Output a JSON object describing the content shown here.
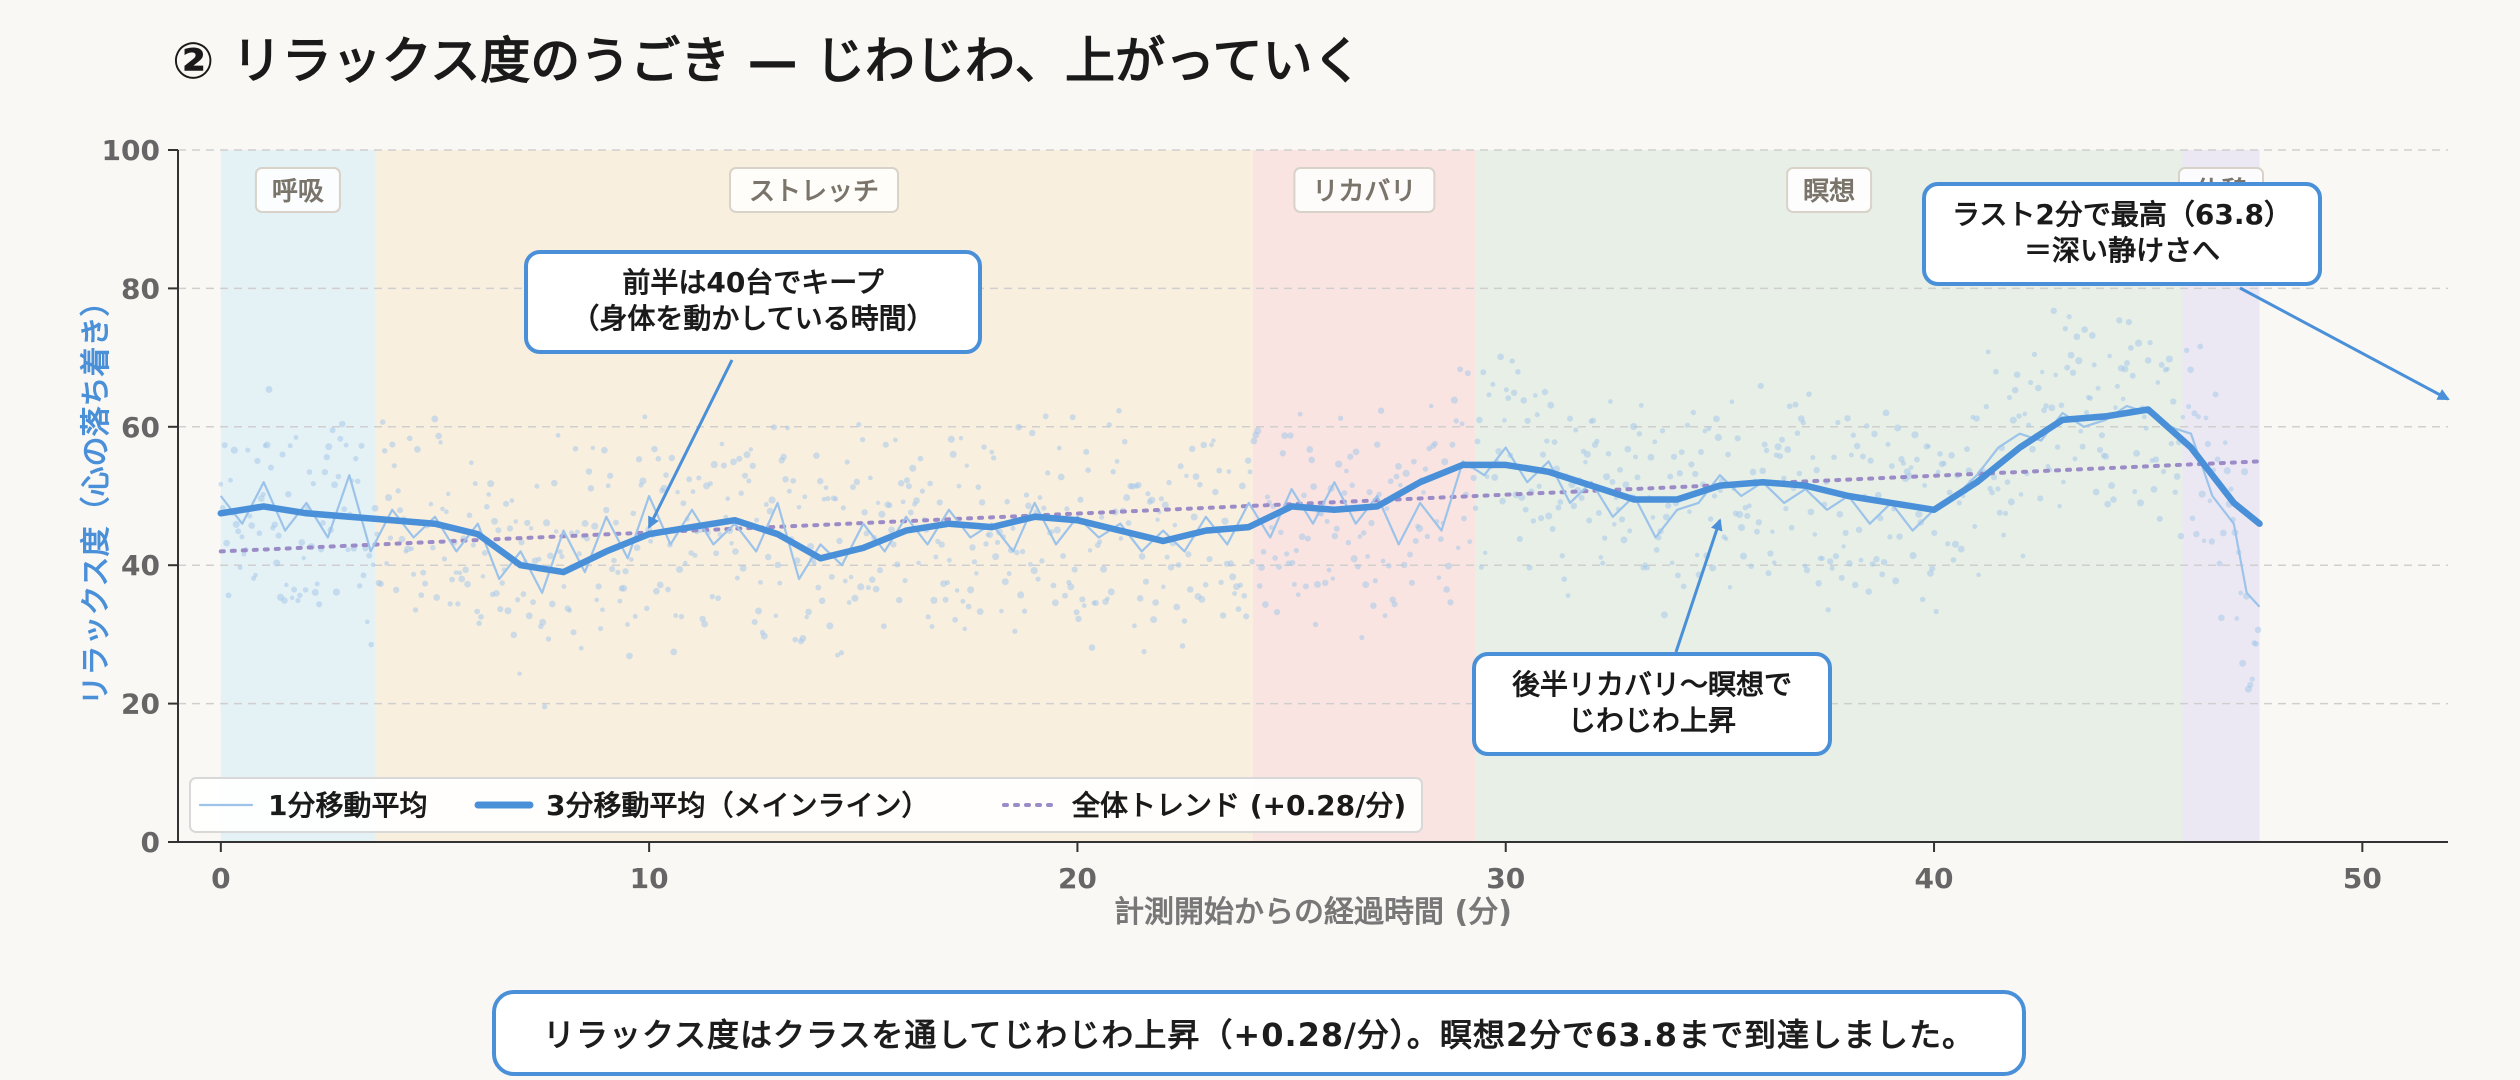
{
  "title": "② リラックス度のうごき — じわじわ、上がっていく",
  "footer_note": "リラックス度はクラスを通してじわじわ上昇（+0.28/分）。瞑想2分で63.8まで到達しました。",
  "colors": {
    "main": "#4a90d9",
    "thin": "#9cc3ea",
    "dots": "#a8c8ea",
    "trend": "#9b8cc8",
    "phase_breath": "#e4f1f5",
    "phase_stretch": "#f8efdf",
    "phase_recovery": "#f9e4e1",
    "phase_meditation": "#e7efe6",
    "phase_rest": "#ece8f3"
  },
  "chart_data": {
    "type": "line",
    "xlabel": "計測開始からの経過時間 (分)",
    "ylabel": "リラックス度（心の落ち着き）",
    "xlim": [
      -1,
      52
    ],
    "ylim": [
      0,
      100
    ],
    "xticks": [
      0,
      10,
      20,
      30,
      40,
      50
    ],
    "yticks": [
      0,
      20,
      40,
      60,
      80,
      100
    ],
    "grid": "horizontal-dashed",
    "legend_position": "bottom-left",
    "phases": [
      {
        "label": "呼吸",
        "start": 0,
        "end": 3.6
      },
      {
        "label": "ストレッチ",
        "start": 3.6,
        "end": 24.1
      },
      {
        "label": "リカバリ",
        "start": 24.1,
        "end": 29.3
      },
      {
        "label": "瞑想",
        "start": 29.3,
        "end": 45.8
      },
      {
        "label": "休憩",
        "start": 45.8,
        "end": 47.6
      }
    ],
    "series": [
      {
        "name": "3分移動平均（メインライン）",
        "x": [
          0,
          1,
          2,
          3,
          4,
          5,
          6,
          7,
          8,
          9,
          10,
          11,
          12,
          13,
          14,
          15,
          16,
          17,
          18,
          19,
          20,
          21,
          22,
          23,
          24,
          25,
          26,
          27,
          28,
          29,
          30,
          31,
          32,
          33,
          34,
          35,
          36,
          37,
          38,
          39,
          40,
          41,
          42,
          43,
          44,
          45,
          46,
          47,
          47.6
        ],
        "y": [
          47.5,
          48.5,
          47.5,
          47,
          46.5,
          46,
          44.5,
          40,
          39,
          42,
          44.5,
          45.5,
          46.5,
          44.5,
          41,
          42.5,
          45,
          46,
          45.5,
          47,
          46.5,
          45,
          43.5,
          45,
          45.5,
          48.5,
          48,
          48.5,
          52,
          54.5,
          54.5,
          53.5,
          51.5,
          49.5,
          49.5,
          51.5,
          52,
          51.5,
          50,
          49,
          48,
          52,
          57,
          61,
          61.5,
          62.5,
          57,
          49,
          46
        ]
      },
      {
        "name": "1分移動平均",
        "x": [
          0,
          0.5,
          1,
          1.5,
          2,
          2.5,
          3,
          3.5,
          4,
          4.5,
          5,
          5.5,
          6,
          6.5,
          7,
          7.5,
          8,
          8.5,
          9,
          9.5,
          10,
          10.5,
          11,
          11.5,
          12,
          12.5,
          13,
          13.5,
          14,
          14.5,
          15,
          15.5,
          16,
          16.5,
          17,
          17.5,
          18,
          18.5,
          19,
          19.5,
          20,
          20.5,
          21,
          21.5,
          22,
          22.5,
          23,
          23.5,
          24,
          24.5,
          25,
          25.5,
          26,
          26.5,
          27,
          27.5,
          28,
          28.5,
          29,
          29.5,
          30,
          30.5,
          31,
          31.5,
          32,
          32.5,
          33,
          33.5,
          34,
          34.5,
          35,
          35.5,
          36,
          36.5,
          37,
          37.5,
          38,
          38.5,
          39,
          39.5,
          40,
          40.5,
          41,
          41.5,
          42,
          42.5,
          43,
          43.5,
          44,
          44.5,
          45,
          45.5,
          46,
          46.5,
          47,
          47.3,
          47.6
        ],
        "y": [
          50,
          46,
          52,
          45,
          49,
          44,
          53,
          42,
          48,
          44,
          47,
          42,
          46,
          38,
          42,
          36,
          45,
          39,
          47,
          41,
          50,
          43,
          48,
          43,
          46,
          42,
          49,
          38,
          43,
          40,
          46,
          42,
          47,
          43,
          48,
          44,
          46,
          42,
          49,
          43,
          47,
          44,
          46,
          42,
          45,
          42,
          47,
          43,
          49,
          44,
          51,
          46,
          52,
          46,
          50,
          43,
          49,
          45,
          55,
          53,
          57,
          52,
          55,
          49,
          52,
          47,
          50,
          44,
          48,
          49,
          53,
          50,
          52,
          49,
          51,
          48,
          50,
          46,
          49,
          45,
          48,
          50,
          53,
          57,
          59,
          58,
          62,
          60,
          61,
          63,
          62,
          60,
          59,
          50,
          46,
          36,
          34
        ]
      },
      {
        "name": "全体トレンド (+0.28/分)",
        "x": [
          0,
          47.6
        ],
        "y": [
          42,
          55
        ]
      }
    ],
    "annotations": [
      {
        "text": [
          "前半は40台でキープ",
          "（身体を動かしている時間）"
        ],
        "target": [
          10,
          45.5
        ]
      },
      {
        "text": [
          "後半リカバリ～瞑想で",
          "じわじわ上昇"
        ],
        "target": [
          35,
          46.5
        ]
      },
      {
        "text": [
          "ラスト2分で最高（63.8）",
          "＝深い静けさへ"
        ],
        "target": [
          52,
          64
        ]
      }
    ]
  }
}
